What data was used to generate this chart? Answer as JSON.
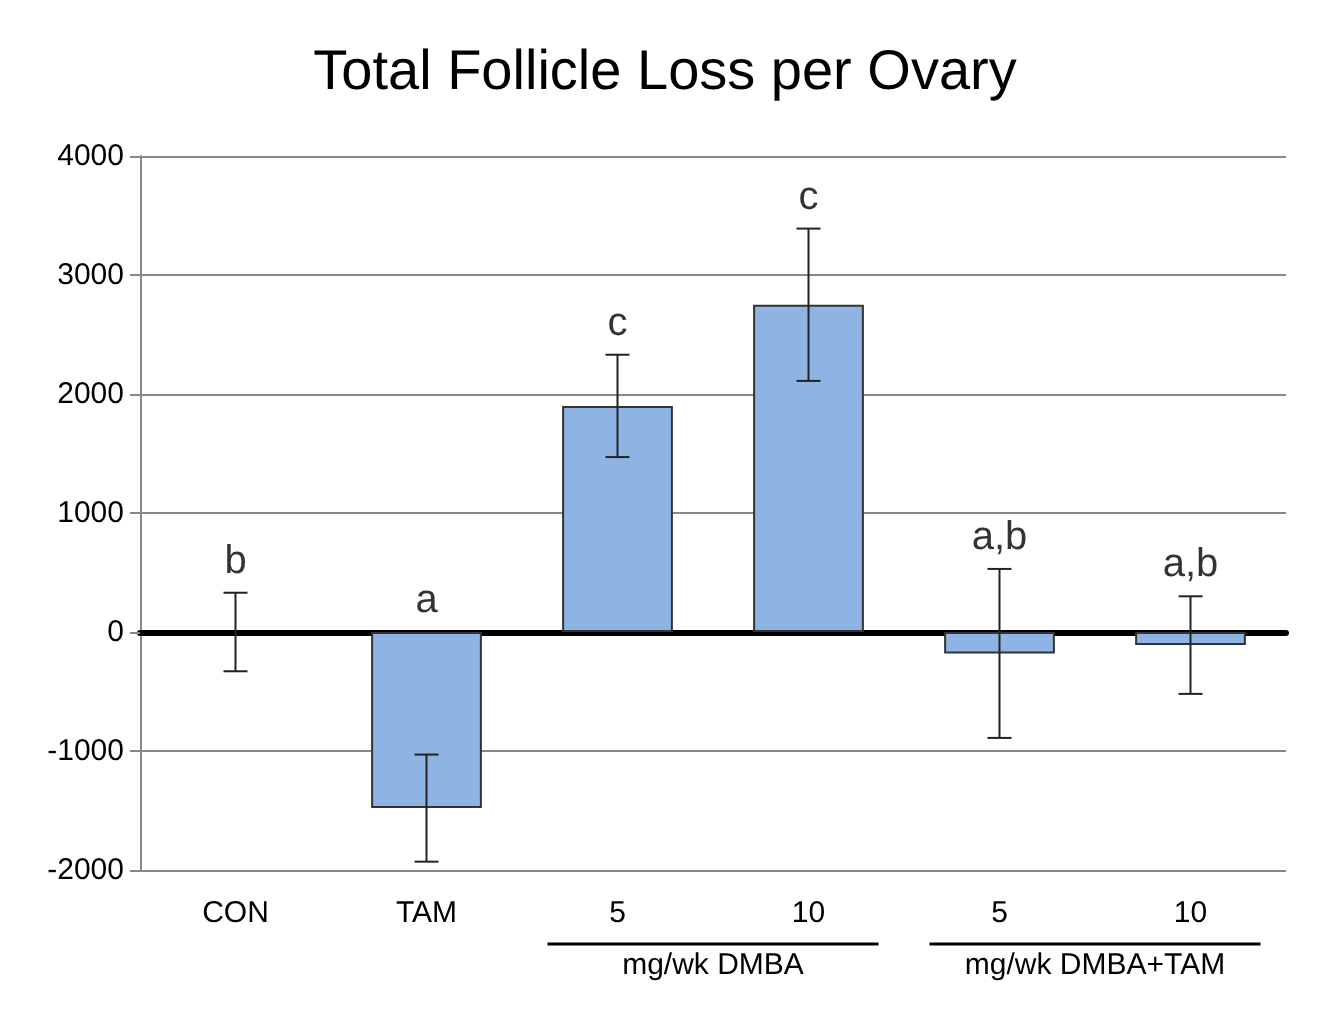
{
  "chart_data": {
    "type": "bar",
    "title": "Total Follicle Loss per Ovary",
    "categories": [
      "CON",
      "TAM",
      "5",
      "10",
      "5",
      "10"
    ],
    "values": [
      0,
      -1480,
      1900,
      2750,
      -180,
      -110
    ],
    "errors": [
      330,
      450,
      430,
      640,
      710,
      410
    ],
    "color": "#8db4e2",
    "ylim": [
      -2000,
      4000
    ],
    "yticks": [
      -2000,
      -1000,
      0,
      1000,
      2000,
      3000,
      4000
    ],
    "grid": "y",
    "annotations": [
      {
        "text": "b",
        "x": "CON",
        "y": 330
      },
      {
        "text": "a",
        "x": "TAM",
        "y": 0
      },
      {
        "text": "c",
        "x": "5",
        "y": 2330
      },
      {
        "text": "c",
        "x": "10",
        "y": 3390
      },
      "a,b",
      "a,b",
      "mg/wk DMBA",
      "mg/wk DMBA+TAM"
    ]
  }
}
